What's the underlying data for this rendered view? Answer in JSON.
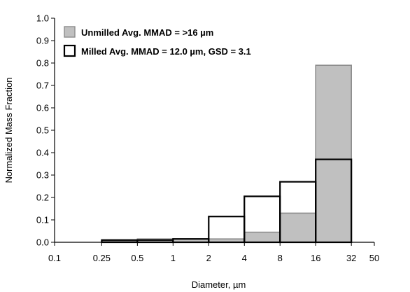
{
  "chart_data": {
    "type": "bar",
    "xlabel": "Diameter, µm",
    "ylabel": "Normalized Mass Fraction",
    "x_scale": "log",
    "xlim": [
      0.1,
      50
    ],
    "ylim": [
      0,
      1.0
    ],
    "x_ticks": [
      0.1,
      0.25,
      0.5,
      1,
      2,
      4,
      8,
      16,
      32,
      50
    ],
    "x_tick_labels": [
      "0.1",
      "0.25",
      "0.5",
      "1",
      "2",
      "4",
      "8",
      "16",
      "32",
      "50"
    ],
    "y_ticks": [
      0,
      0.1,
      0.2,
      0.3,
      0.4,
      0.5,
      0.6,
      0.7,
      0.8,
      0.9,
      1.0
    ],
    "y_tick_labels": [
      "0.0",
      "0.1",
      "0.2",
      "0.3",
      "0.4",
      "0.5",
      "0.6",
      "0.7",
      "0.8",
      "0.9",
      "1.0"
    ],
    "bins": [
      [
        0.25,
        0.5
      ],
      [
        0.5,
        1
      ],
      [
        1,
        2
      ],
      [
        2,
        4
      ],
      [
        4,
        8
      ],
      [
        8,
        16
      ],
      [
        16,
        32
      ]
    ],
    "legend_position": "top-left",
    "grid": false,
    "series": [
      {
        "name": "Unmilled Avg.  MMAD = >16 µm",
        "fill": "#c0c0c0",
        "stroke": "#8c8c8c",
        "values": [
          0.005,
          0.015,
          0.015,
          0.015,
          0.045,
          0.13,
          0.79
        ]
      },
      {
        "name": "Milled Avg. MMAD = 12.0 µm, GSD = 3.1",
        "fill": "none",
        "stroke": "#000000",
        "values": [
          0.01,
          0.01,
          0.015,
          0.115,
          0.205,
          0.27,
          0.37
        ]
      }
    ]
  }
}
